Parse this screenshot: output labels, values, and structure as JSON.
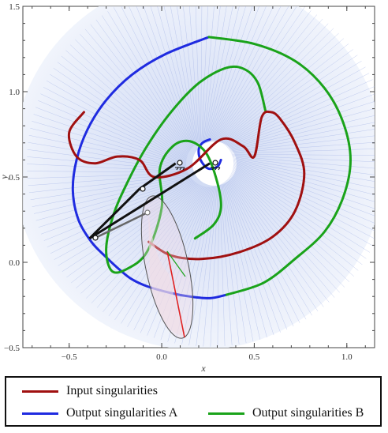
{
  "chart_data": {
    "type": "line",
    "title": "",
    "xlabel": "x",
    "ylabel": "y",
    "xlim": [
      -0.75,
      1.15
    ],
    "ylim": [
      -0.5,
      1.5
    ],
    "xticks": [
      -0.5,
      0.0,
      0.5,
      1.0
    ],
    "yticks": [
      -0.5,
      0.0,
      0.5,
      1.0,
      1.5
    ],
    "xtick_labels": [
      "−0.5",
      "0.0",
      "0.5",
      "1.0"
    ],
    "ytick_labels": [
      "−0.5",
      "0.0",
      "0.5",
      "1.0",
      "1.5"
    ],
    "legend": {
      "placement": "bottom",
      "entries": [
        {
          "label": "Input singularities",
          "color": "#a01010"
        },
        {
          "label": "Output singularities A",
          "color": "#1f2be0"
        },
        {
          "label": "Output singularities B",
          "color": "#1aa31a"
        }
      ]
    },
    "series": [
      {
        "name": "Output singularities A",
        "color": "#1f2be0",
        "x": [
          0.255,
          0.02,
          -0.16,
          -0.3,
          -0.4,
          -0.46,
          -0.48,
          -0.45,
          -0.38,
          -0.3,
          -0.22,
          -0.16,
          -0.08,
          0.05,
          0.15,
          0.26,
          0.35
        ],
        "y": [
          1.32,
          1.22,
          1.1,
          0.95,
          0.78,
          0.6,
          0.42,
          0.25,
          0.12,
          0.03,
          -0.05,
          -0.1,
          -0.14,
          -0.18,
          -0.2,
          -0.21,
          -0.19
        ]
      },
      {
        "name": "Output singularities A (inner)",
        "color": "#1f2be0",
        "x": [
          0.26,
          0.22,
          0.2,
          0.21,
          0.25,
          0.3,
          0.32
        ],
        "y": [
          0.72,
          0.7,
          0.66,
          0.6,
          0.55,
          0.56,
          0.6
        ]
      },
      {
        "name": "Output singularities B (outer)",
        "color": "#1aa31a",
        "x": [
          0.255,
          0.5,
          0.72,
          0.88,
          0.98,
          1.02,
          0.98,
          0.88,
          0.72,
          0.55,
          0.35
        ],
        "y": [
          1.32,
          1.28,
          1.18,
          1.02,
          0.82,
          0.6,
          0.38,
          0.18,
          0.02,
          -0.12,
          -0.19
        ]
      },
      {
        "name": "Output singularities B (inner)",
        "color": "#1aa31a",
        "x": [
          0.56,
          0.52,
          0.45,
          0.35,
          0.2,
          0.05,
          -0.08,
          -0.18,
          -0.26,
          -0.3,
          -0.27,
          -0.19,
          -0.08,
          0.0,
          -0.01,
          0.06,
          0.15,
          0.24,
          0.3,
          0.32,
          0.28,
          0.18
        ],
        "y": [
          0.89,
          1.05,
          1.13,
          1.14,
          1.05,
          0.88,
          0.68,
          0.48,
          0.28,
          0.08,
          -0.05,
          -0.04,
          0.06,
          0.32,
          0.55,
          0.68,
          0.71,
          0.64,
          0.47,
          0.32,
          0.22,
          0.14
        ]
      },
      {
        "name": "Input singularities",
        "color": "#a01010",
        "x": [
          -0.42,
          -0.5,
          -0.46,
          -0.36,
          -0.24,
          -0.12,
          -0.04,
          0.14,
          0.32,
          0.44,
          0.5,
          0.54,
          0.59,
          0.64,
          0.72,
          0.77,
          0.72,
          0.6,
          0.42,
          0.22,
          0.05,
          -0.07
        ],
        "y": [
          0.88,
          0.76,
          0.62,
          0.58,
          0.62,
          0.6,
          0.5,
          0.55,
          0.72,
          0.68,
          0.62,
          0.85,
          0.88,
          0.84,
          0.7,
          0.52,
          0.3,
          0.15,
          0.06,
          0.02,
          0.04,
          0.12
        ]
      }
    ],
    "annotations": {
      "mechanism_links": [
        {
          "x": [
            -0.39,
            -0.12
          ],
          "y": [
            0.14,
            0.43
          ],
          "color": "#111111"
        },
        {
          "x": [
            -0.12,
            0.075
          ],
          "y": [
            0.43,
            0.58
          ],
          "color": "#111111"
        },
        {
          "x": [
            -0.39,
            0.26
          ],
          "y": [
            0.14,
            0.58
          ],
          "color": "#111111"
        }
      ],
      "workspace_ring": {
        "center": [
          0.26,
          0.58
        ],
        "inner_radius": 0.12,
        "outer_radius": 1.02
      }
    }
  }
}
